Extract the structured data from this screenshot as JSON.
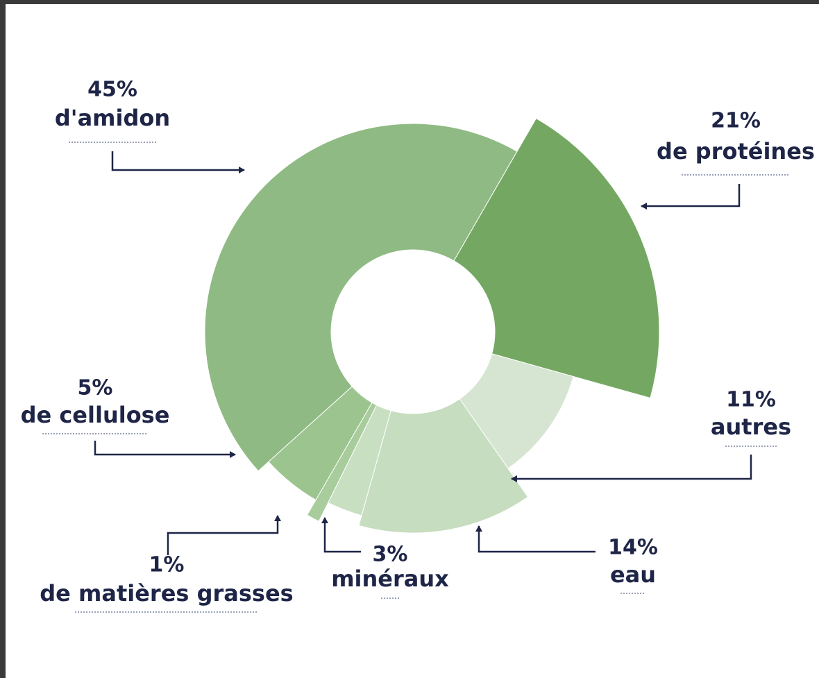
{
  "chart_data": {
    "type": "pie",
    "categories": [
      "d'amidon",
      "de protéines",
      "autres",
      "eau",
      "minéraux",
      "de matières grasses",
      "de cellulose"
    ],
    "values": [
      45,
      21,
      11,
      14,
      3,
      1,
      5
    ],
    "value_labels": [
      "45%",
      "21%",
      "11%",
      "14%",
      "3%",
      "1%",
      "5%"
    ],
    "colors": [
      "#8fba83",
      "#74a862",
      "#d6e5d1",
      "#c6ddbf",
      "#c9dfc2",
      "#a8cc9c",
      "#9cc48f"
    ]
  }
}
